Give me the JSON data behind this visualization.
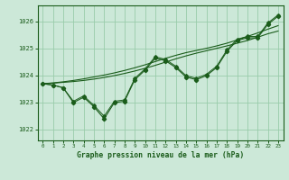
{
  "title": "Graphe pression niveau de la mer (hPa)",
  "bg_color": "#cce8d8",
  "grid_color": "#99ccaa",
  "line_color": "#1a5c1a",
  "xlim": [
    -0.5,
    23.5
  ],
  "ylim": [
    1021.6,
    1026.6
  ],
  "yticks": [
    1022,
    1023,
    1024,
    1025,
    1026
  ],
  "xticks": [
    0,
    1,
    2,
    3,
    4,
    5,
    6,
    7,
    8,
    9,
    10,
    11,
    12,
    13,
    14,
    15,
    16,
    17,
    18,
    19,
    20,
    21,
    22,
    23
  ],
  "jagged1": [
    1023.7,
    1023.65,
    1023.55,
    1023.0,
    1023.2,
    1022.85,
    1022.4,
    1023.0,
    1023.05,
    1023.85,
    1024.2,
    1024.65,
    1024.55,
    1024.3,
    1023.95,
    1023.85,
    1024.0,
    1024.3,
    1024.9,
    1025.3,
    1025.4,
    1025.4,
    1025.9,
    1026.2
  ],
  "jagged2": [
    1023.7,
    1023.65,
    1023.55,
    1023.05,
    1023.25,
    1022.9,
    1022.5,
    1023.05,
    1023.1,
    1023.9,
    1024.25,
    1024.7,
    1024.6,
    1024.35,
    1024.0,
    1023.9,
    1024.05,
    1024.35,
    1024.95,
    1025.35,
    1025.45,
    1025.45,
    1025.95,
    1026.25
  ],
  "smooth1": [
    1023.7,
    1023.72,
    1023.75,
    1023.78,
    1023.82,
    1023.87,
    1023.93,
    1024.0,
    1024.08,
    1024.17,
    1024.27,
    1024.38,
    1024.5,
    1024.62,
    1024.73,
    1024.83,
    1024.92,
    1025.01,
    1025.1,
    1025.2,
    1025.3,
    1025.42,
    1025.55,
    1025.65
  ],
  "smooth2": [
    1023.7,
    1023.73,
    1023.77,
    1023.82,
    1023.88,
    1023.95,
    1024.02,
    1024.1,
    1024.19,
    1024.29,
    1024.4,
    1024.52,
    1024.64,
    1024.75,
    1024.85,
    1024.93,
    1025.01,
    1025.1,
    1025.2,
    1025.32,
    1025.45,
    1025.58,
    1025.72,
    1025.85
  ]
}
